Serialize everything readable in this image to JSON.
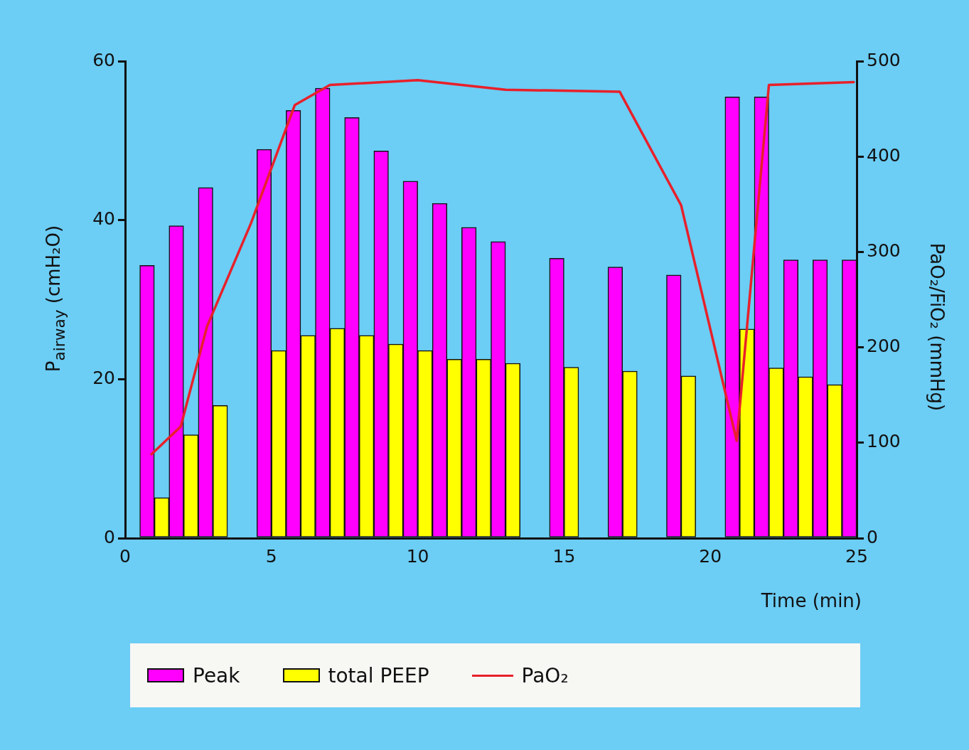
{
  "chart_data": {
    "type": "bar",
    "xlabel": "Time (min)",
    "ylabel": "P$_{airway}$ (cmH₂O)",
    "y2label": "PaO₂/FiO₂ (mmHg)",
    "x": [
      1,
      2,
      3,
      5,
      6,
      7,
      8,
      9,
      10,
      11,
      12,
      13,
      15,
      17,
      19,
      21,
      22,
      23,
      24,
      25
    ],
    "series": [
      {
        "name": "Peak",
        "color": "#ff00ff",
        "values": [
          34.3,
          39.3,
          44.1,
          48.9,
          53.8,
          56.6,
          52.9,
          48.7,
          44.9,
          42.1,
          39.1,
          37.3,
          35.2,
          34.1,
          33.1,
          55.5,
          55.5,
          35.0,
          35.0,
          35.0
        ]
      },
      {
        "name": "total PEEP",
        "color": "#ffff00",
        "values": [
          5.1,
          13.0,
          16.7,
          23.6,
          25.5,
          26.4,
          25.5,
          24.4,
          23.6,
          22.5,
          22.5,
          22.0,
          21.5,
          21.0,
          20.4,
          26.3,
          21.4,
          20.3,
          19.3,
          null
        ]
      },
      {
        "name": "PaO₂",
        "type": "line",
        "axis": "y2",
        "color": "#e8202a",
        "x": [
          0.9,
          1.9,
          2.8,
          4.3,
          5.8,
          7.0,
          10.0,
          13.0,
          16.9,
          19.0,
          20.9,
          22.0,
          24.9
        ],
        "values": [
          88,
          117,
          222,
          330,
          454,
          475,
          480,
          470,
          468,
          349,
          102,
          475,
          478
        ]
      }
    ],
    "xlim": [
      0,
      25
    ],
    "xticks": [
      0,
      5,
      10,
      15,
      20,
      25
    ],
    "ylim": [
      0,
      60
    ],
    "yticks": [
      0,
      20,
      40,
      60
    ],
    "y2lim": [
      0,
      500
    ],
    "y2ticks": [
      0,
      100,
      200,
      300,
      400,
      500
    ],
    "grid": false,
    "legend": "bottom"
  }
}
